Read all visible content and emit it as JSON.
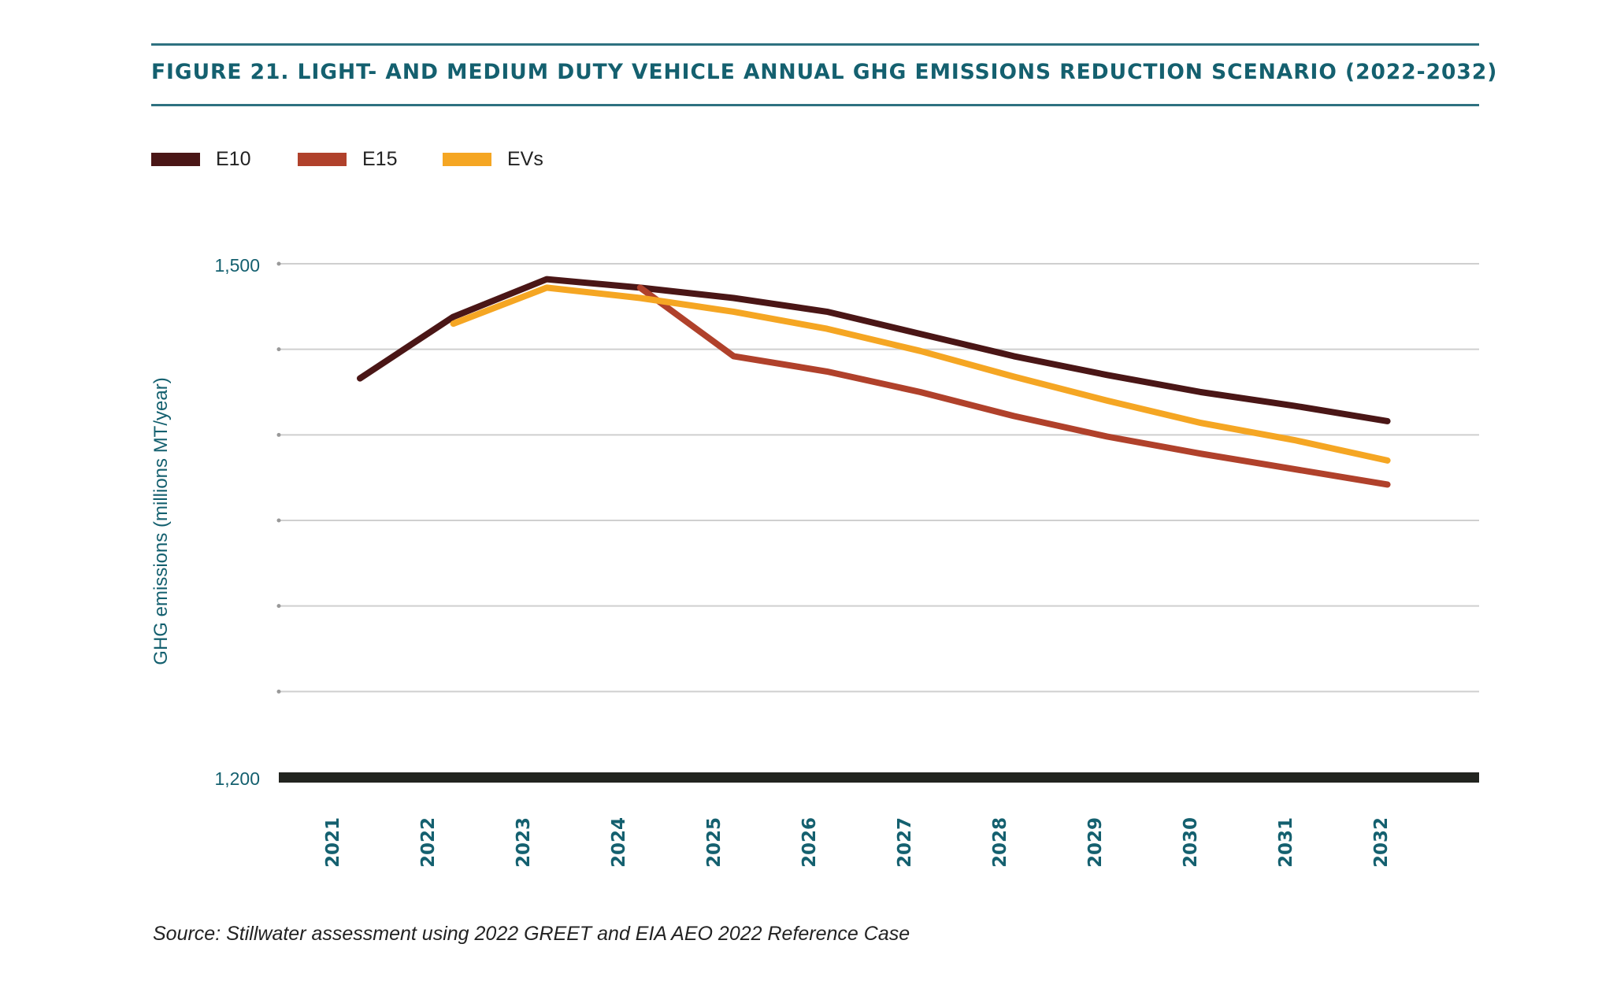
{
  "title": "FIGURE 21. LIGHT- AND MEDIUM DUTY VEHICLE ANNUAL GHG EMISSIONS REDUCTION SCENARIO (2022-2032)",
  "source": "Source: Stillwater assessment using 2022 GREET and EIA AEO 2022 Reference Case",
  "chart_data": {
    "type": "line",
    "title": "FIGURE 21. LIGHT- AND MEDIUM DUTY VEHICLE ANNUAL GHG EMISSIONS REDUCTION SCENARIO (2022-2032)",
    "xlabel": "",
    "ylabel": "GHG emissions (millions MT/year)",
    "ylim": [
      1200,
      1500
    ],
    "yticks": [
      1200,
      1250,
      1300,
      1350,
      1400,
      1450,
      1500
    ],
    "ytick_labels": {
      "1200": "1,200",
      "1500": "1,500"
    },
    "grid": true,
    "legend": "top-left",
    "x": [
      "2021",
      "2022",
      "2023",
      "2024",
      "2025",
      "2026",
      "2027",
      "2028",
      "2029",
      "2030",
      "2031",
      "2032"
    ],
    "series": [
      {
        "name": "E10",
        "color": "#4a1616",
        "values": [
          1433,
          1469,
          1491,
          1486,
          1480,
          1472,
          1459,
          1446,
          1435,
          1425,
          1417,
          1408
        ]
      },
      {
        "name": "E15",
        "color": "#b0412b",
        "values": [
          null,
          null,
          null,
          1486,
          1446,
          1437,
          1425,
          1411,
          1399,
          1389,
          1380,
          1371
        ]
      },
      {
        "name": "EVs",
        "color": "#f5a623",
        "values": [
          null,
          1465,
          1486,
          1480,
          1472,
          1462,
          1449,
          1434,
          1420,
          1407,
          1397,
          1385
        ]
      }
    ],
    "axis_color": "#14606f",
    "baseline_color": "#22241f"
  }
}
